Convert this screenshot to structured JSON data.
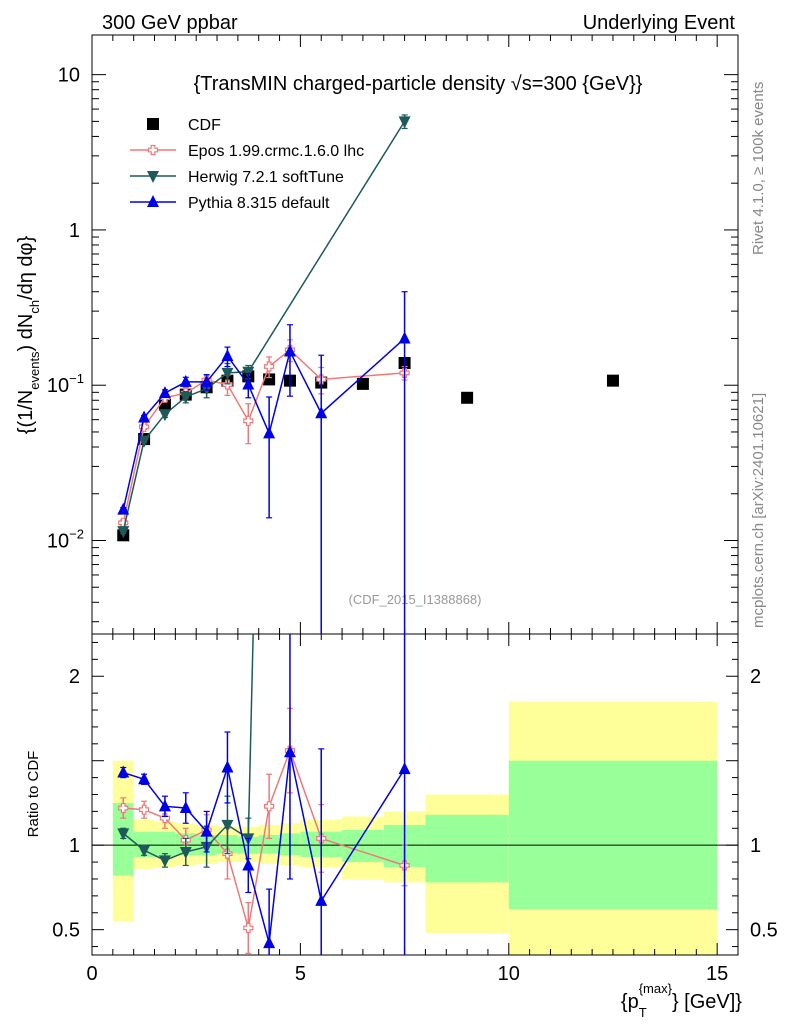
{
  "header": {
    "left_title": "300 GeV ppbar",
    "right_title": "Underlying Event",
    "side_label_top": "Rivet 4.1.0, ≥ 100k events",
    "side_label_bottom": "mcplots.cern.ch [arXiv:2401.10621]",
    "watermark": "(CDF_2015_I1388868)"
  },
  "chart_data": {
    "type": "line",
    "title": "{TransMIN charged-particle density √s=300 {GeV}}",
    "title_parts": {
      "prefix": "{TransMIN charged-particle density ",
      "root": "√",
      "suffix": "s=300 {GeV}}"
    },
    "xlabel": "{p_T^{max}} [GeV]",
    "xlabel_parts": {
      "open": "{p",
      "sub": "T",
      "sup": "{max}",
      "close": "} [GeV]}"
    },
    "ylabel": "{(1/N_events) dN_ch/dη dφ}",
    "ylabel_parts": {
      "a": "{(1/N",
      "sub1": "events",
      "b": ") dN",
      "sub2": "ch",
      "c": "/dη dφ}"
    },
    "ratio_ylabel": "Ratio to CDF",
    "xlim": [
      0,
      15.5
    ],
    "ylim": [
      0.0025,
      18
    ],
    "ratio_ylim": [
      0.35,
      2.25
    ],
    "yscale": "log",
    "x_ticks": [
      "0",
      "5",
      "10",
      "15"
    ],
    "y_ticks": [
      {
        "value": 0.01,
        "base": "10",
        "exp": "−2"
      },
      {
        "value": 0.1,
        "base": "10",
        "exp": "−1"
      },
      {
        "value": 1,
        "base": "1",
        "exp": ""
      },
      {
        "value": 10,
        "base": "10",
        "exp": ""
      }
    ],
    "ratio_ticks": [
      "0.5",
      "1",
      "2"
    ],
    "legend_position": "top-left",
    "data": {
      "name": "CDF",
      "color": "#000000",
      "points": [
        {
          "x": 0.75,
          "y": 0.0108
        },
        {
          "x": 1.25,
          "y": 0.045
        },
        {
          "x": 1.75,
          "y": 0.075
        },
        {
          "x": 2.25,
          "y": 0.087
        },
        {
          "x": 2.75,
          "y": 0.097
        },
        {
          "x": 3.25,
          "y": 0.107
        },
        {
          "x": 3.75,
          "y": 0.114
        },
        {
          "x": 4.25,
          "y": 0.109
        },
        {
          "x": 4.75,
          "y": 0.107
        },
        {
          "x": 5.5,
          "y": 0.104
        },
        {
          "x": 6.5,
          "y": 0.102
        },
        {
          "x": 7.5,
          "y": 0.139
        },
        {
          "x": 9.0,
          "y": 0.083
        },
        {
          "x": 12.5,
          "y": 0.107
        }
      ]
    },
    "uncertainty_bands": [
      {
        "x0": 0.5,
        "x1": 1.0,
        "g0": 0.82,
        "g1": 1.25,
        "y0": 0.55,
        "y1": 1.5
      },
      {
        "x0": 1.0,
        "x1": 1.5,
        "g0": 0.93,
        "g1": 1.08,
        "y0": 0.86,
        "y1": 1.15
      },
      {
        "x0": 1.5,
        "x1": 2.0,
        "g0": 0.93,
        "g1": 1.08,
        "y0": 0.87,
        "y1": 1.14
      },
      {
        "x0": 2.0,
        "x1": 2.5,
        "g0": 0.94,
        "g1": 1.07,
        "y0": 0.88,
        "y1": 1.13
      },
      {
        "x0": 2.5,
        "x1": 3.0,
        "g0": 0.94,
        "g1": 1.06,
        "y0": 0.89,
        "y1": 1.12
      },
      {
        "x0": 3.0,
        "x1": 3.5,
        "g0": 0.95,
        "g1": 1.06,
        "y0": 0.9,
        "y1": 1.11
      },
      {
        "x0": 3.5,
        "x1": 4.0,
        "g0": 0.95,
        "g1": 1.05,
        "y0": 0.9,
        "y1": 1.11
      },
      {
        "x0": 4.0,
        "x1": 4.5,
        "g0": 0.95,
        "g1": 1.06,
        "y0": 0.89,
        "y1": 1.12
      },
      {
        "x0": 4.5,
        "x1": 5.0,
        "g0": 0.94,
        "g1": 1.07,
        "y0": 0.88,
        "y1": 1.13
      },
      {
        "x0": 5.0,
        "x1": 6.0,
        "g0": 0.93,
        "g1": 1.08,
        "y0": 0.87,
        "y1": 1.15
      },
      {
        "x0": 6.0,
        "x1": 7.0,
        "g0": 0.9,
        "g1": 1.09,
        "y0": 0.8,
        "y1": 1.17
      },
      {
        "x0": 7.0,
        "x1": 8.0,
        "g0": 0.87,
        "g1": 1.12,
        "y0": 0.78,
        "y1": 1.2
      },
      {
        "x0": 8.0,
        "x1": 10.0,
        "g0": 0.78,
        "g1": 1.18,
        "y0": 0.48,
        "y1": 1.3
      },
      {
        "x0": 10.0,
        "x1": 15.0,
        "g0": 0.62,
        "g1": 1.5,
        "y0": 0.35,
        "y1": 1.85
      }
    ],
    "series": [
      {
        "name": "Epos 1.99.crmc.1.6.0 lhc",
        "color": "#f07878",
        "marker": "open-cross",
        "points": [
          {
            "x": 0.75,
            "y": 0.013,
            "err": 0.0006,
            "ratio": 1.22,
            "rerr": 0.06
          },
          {
            "x": 1.25,
            "y": 0.054,
            "err": 0.002,
            "ratio": 1.21,
            "rerr": 0.05
          },
          {
            "x": 1.75,
            "y": 0.083,
            "err": 0.004,
            "ratio": 1.16,
            "rerr": 0.06
          },
          {
            "x": 2.25,
            "y": 0.089,
            "err": 0.006,
            "ratio": 1.03,
            "rerr": 0.07
          },
          {
            "x": 2.75,
            "y": 0.108,
            "err": 0.008,
            "ratio": 1.09,
            "rerr": 0.09
          },
          {
            "x": 3.25,
            "y": 0.101,
            "err": 0.015,
            "ratio": 0.95,
            "rerr": 0.15
          },
          {
            "x": 3.75,
            "y": 0.059,
            "err": 0.017,
            "ratio": 0.51,
            "rerr": 0.15
          },
          {
            "x": 4.25,
            "y": 0.132,
            "err": 0.02,
            "ratio": 1.23,
            "rerr": 0.19
          },
          {
            "x": 4.75,
            "y": 0.169,
            "err": 0.027,
            "ratio": 1.56,
            "rerr": 0.25
          },
          {
            "x": 5.5,
            "y": 0.109,
            "err": 0.021,
            "ratio": 1.04,
            "rerr": 0.2
          },
          {
            "x": 7.5,
            "y": 0.12,
            "err": 0.012,
            "ratio": 0.88,
            "rerr": 0.12
          }
        ]
      },
      {
        "name": "Herwig 7.2.1 softTune",
        "color": "#1e5a5a",
        "marker": "triangle-down",
        "points": [
          {
            "x": 0.75,
            "y": 0.0115,
            "err": 0.0004,
            "ratio": 1.07,
            "rerr": 0.03
          },
          {
            "x": 1.25,
            "y": 0.044,
            "err": 0.0015,
            "ratio": 0.97,
            "rerr": 0.03
          },
          {
            "x": 1.75,
            "y": 0.065,
            "err": 0.003,
            "ratio": 0.91,
            "rerr": 0.04
          },
          {
            "x": 2.25,
            "y": 0.084,
            "err": 0.007,
            "ratio": 0.96,
            "rerr": 0.08
          },
          {
            "x": 2.75,
            "y": 0.095,
            "err": 0.012,
            "ratio": 0.99,
            "rerr": 0.12
          },
          {
            "x": 3.25,
            "y": 0.12,
            "err": 0.018,
            "ratio": 1.12,
            "rerr": 0.17
          },
          {
            "x": 3.75,
            "y": 0.122,
            "err": 0.012,
            "ratio": 1.04,
            "rerr": 0.12
          },
          {
            "x": 7.5,
            "y": 5.0,
            "err": 0.5,
            "ratio": 40.0,
            "rerr": 5.0
          }
        ]
      },
      {
        "name": "Pythia 8.315 default",
        "color": "#0000e6",
        "marker": "triangle-up",
        "points": [
          {
            "x": 0.75,
            "y": 0.0158,
            "err": 0.0005,
            "ratio": 1.43,
            "rerr": 0.03
          },
          {
            "x": 1.25,
            "y": 0.062,
            "err": 0.0018,
            "ratio": 1.39,
            "rerr": 0.03
          },
          {
            "x": 1.75,
            "y": 0.089,
            "err": 0.0045,
            "ratio": 1.23,
            "rerr": 0.06
          },
          {
            "x": 2.25,
            "y": 0.105,
            "err": 0.0075,
            "ratio": 1.22,
            "rerr": 0.09
          },
          {
            "x": 2.75,
            "y": 0.105,
            "err": 0.012,
            "ratio": 1.08,
            "rerr": 0.12
          },
          {
            "x": 3.25,
            "y": 0.154,
            "err": 0.022,
            "ratio": 1.46,
            "rerr": 0.21
          },
          {
            "x": 3.75,
            "y": 0.101,
            "err": 0.018,
            "ratio": 0.88,
            "rerr": 0.16
          },
          {
            "x": 4.25,
            "y": 0.049,
            "err": 0.035,
            "ratio": 0.42,
            "rerr": 0.32
          },
          {
            "x": 4.75,
            "y": 0.165,
            "err": 0.08,
            "ratio": 1.55,
            "rerr": 0.75
          },
          {
            "x": 5.5,
            "y": 0.066,
            "err": 0.09,
            "ratio": 0.67,
            "rerr": 0.9
          },
          {
            "x": 7.5,
            "y": 0.2,
            "err": 0.2,
            "ratio": 1.45,
            "rerr": 1.45
          }
        ]
      }
    ]
  }
}
